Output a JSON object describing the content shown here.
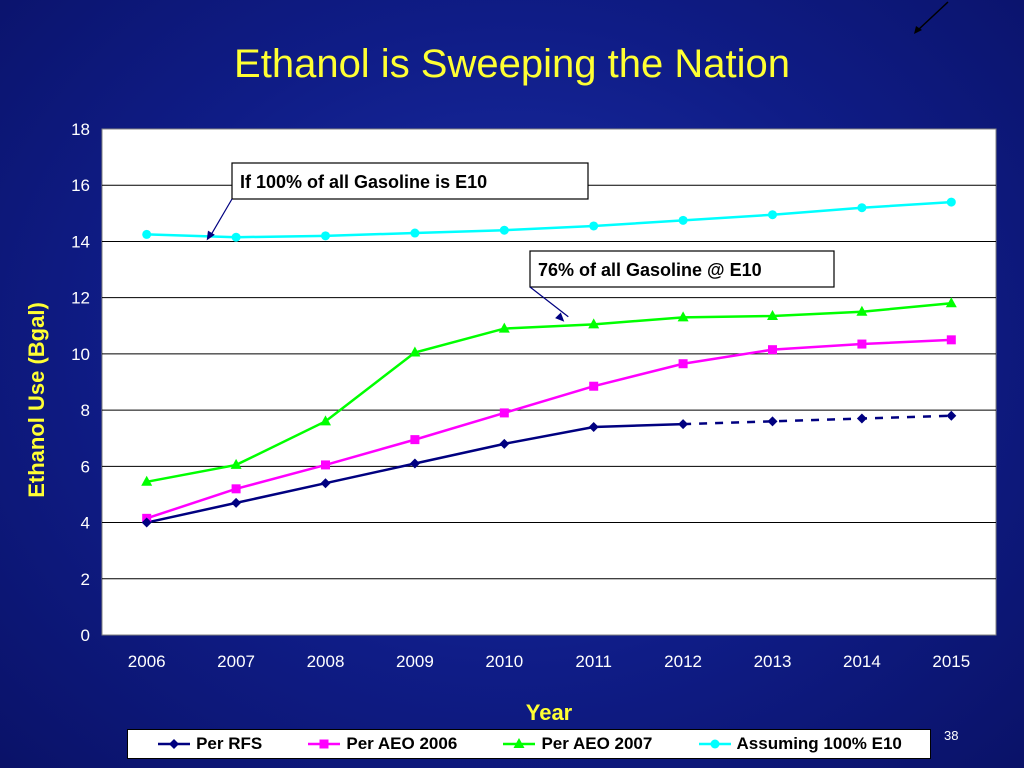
{
  "slide": {
    "title": "Ethanol is Sweeping the Nation",
    "slide_number": "38"
  },
  "colors": {
    "title": "#ffff33",
    "per_rfs": "#000080",
    "per_aeo_2006": "#ff00ff",
    "per_aeo_2007": "#00ff00",
    "assuming_100_e10": "#00ffff"
  },
  "chart_data": {
    "type": "line",
    "title": "",
    "xlabel": "Year",
    "ylabel": "Ethanol Use (Bgal)",
    "ylim": [
      0,
      18
    ],
    "yticks": [
      0,
      2,
      4,
      6,
      8,
      10,
      12,
      14,
      16,
      18
    ],
    "grid": true,
    "legend_placement": "bottom",
    "categories": [
      "2006",
      "2007",
      "2008",
      "2009",
      "2010",
      "2011",
      "2012",
      "2013",
      "2014",
      "2015"
    ],
    "series": [
      {
        "name": "Per RFS",
        "marker": "diamond",
        "values": [
          4.0,
          4.7,
          5.4,
          6.1,
          6.8,
          7.4,
          7.5,
          7.6,
          7.7,
          7.8
        ],
        "dashed_from_index": 6
      },
      {
        "name": "Per AEO 2006",
        "marker": "square",
        "values": [
          4.15,
          5.2,
          6.05,
          6.95,
          7.9,
          8.85,
          9.65,
          10.15,
          10.35,
          10.5
        ]
      },
      {
        "name": "Per AEO 2007",
        "marker": "triangle",
        "values": [
          5.45,
          6.05,
          7.6,
          10.05,
          10.9,
          11.05,
          11.3,
          11.35,
          11.5,
          11.8
        ]
      },
      {
        "name": "Assuming 100% E10",
        "marker": "circle",
        "values": [
          14.25,
          14.15,
          14.2,
          14.3,
          14.4,
          14.55,
          14.75,
          14.95,
          15.2,
          15.4
        ]
      }
    ],
    "annotations": [
      {
        "text": "If 100% of all Gasoline is E10",
        "points_to": {
          "x": "2006",
          "y": 14.5
        }
      },
      {
        "text": "76% of all Gasoline @ E10",
        "points_to": {
          "x": "2010",
          "y": 11.5
        }
      }
    ]
  }
}
